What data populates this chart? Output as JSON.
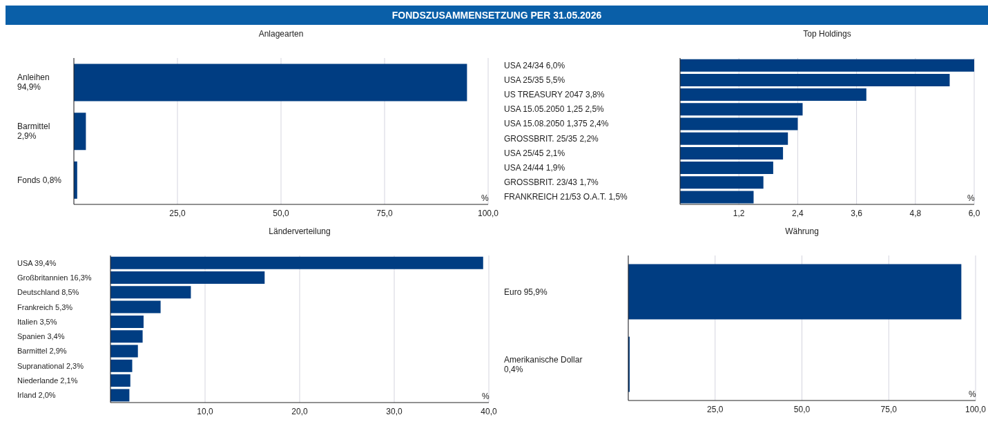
{
  "chart_data": [
    {
      "type": "other",
      "title": "FONDSZUSAMMENSETZUNG PER 31.05.2026"
    },
    {
      "type": "bar",
      "orientation": "horizontal",
      "title": "Anlagearten",
      "xlabel": "%",
      "categories": [
        "Anleihen 94,9%",
        "Barmittel 2,9%",
        "Fonds 0,8%"
      ],
      "values": [
        94.9,
        2.9,
        0.8
      ],
      "color": "#003d82",
      "xlim": [
        0,
        100
      ],
      "xticks": [
        {
          "value": 25,
          "label": "25,0"
        },
        {
          "value": 50,
          "label": "50,0"
        },
        {
          "value": 75,
          "label": "75,0"
        },
        {
          "value": 100,
          "label": "100,0"
        }
      ],
      "grid": "x"
    },
    {
      "type": "bar",
      "orientation": "horizontal",
      "title": "Top Holdings",
      "xlabel": "%",
      "categories": [
        "USA 24/34 6,0%",
        "USA 25/35 5,5%",
        "US TREASURY 2047 3,8%",
        "USA 15.05.2050 1,25 2,5%",
        "USA 15.08.2050 1,375 2,4%",
        "GROSSBRIT. 25/35 2,2%",
        "USA 25/45 2,1%",
        "USA 24/44 1,9%",
        "GROSSBRIT. 23/43 1,7%",
        "FRANKREICH 21/53 O.A.T. 1,5%"
      ],
      "values": [
        6.0,
        5.5,
        3.8,
        2.5,
        2.4,
        2.2,
        2.1,
        1.9,
        1.7,
        1.5
      ],
      "color": "#003d82",
      "xlim": [
        0,
        6
      ],
      "xticks": [
        {
          "value": 1.2,
          "label": "1,2"
        },
        {
          "value": 2.4,
          "label": "2,4"
        },
        {
          "value": 3.6,
          "label": "3,6"
        },
        {
          "value": 4.8,
          "label": "4,8"
        },
        {
          "value": 6,
          "label": "6,0"
        }
      ],
      "grid": "x"
    },
    {
      "type": "bar",
      "orientation": "horizontal",
      "title": "Länderverteilung",
      "xlabel": "%",
      "categories": [
        "USA 39,4%",
        "Großbritannien 16,3%",
        "Deutschland 8,5%",
        "Frankreich 5,3%",
        "Italien 3,5%",
        "Spanien 3,4%",
        "Barmittel 2,9%",
        "Supranational 2,3%",
        "Niederlande 2,1%",
        "Irland 2,0%"
      ],
      "values": [
        39.4,
        16.3,
        8.5,
        5.3,
        3.5,
        3.4,
        2.9,
        2.3,
        2.1,
        2.0
      ],
      "color": "#003d82",
      "xlim": [
        0,
        40
      ],
      "xticks": [
        {
          "value": 10,
          "label": "10,0"
        },
        {
          "value": 20,
          "label": "20,0"
        },
        {
          "value": 30,
          "label": "30,0"
        },
        {
          "value": 40,
          "label": "40,0"
        }
      ],
      "grid": "x"
    },
    {
      "type": "bar",
      "orientation": "horizontal",
      "title": "Währung",
      "xlabel": "%",
      "categories": [
        "Euro 95,9%",
        "Amerikanische Dollar 0,4%"
      ],
      "values": [
        95.9,
        0.4
      ],
      "color": "#003d82",
      "xlim": [
        0,
        100
      ],
      "xticks": [
        {
          "value": 25,
          "label": "25,0"
        },
        {
          "value": 50,
          "label": "50,0"
        },
        {
          "value": 75,
          "label": "75,0"
        },
        {
          "value": 100,
          "label": "100,0"
        }
      ],
      "grid": "x"
    }
  ]
}
